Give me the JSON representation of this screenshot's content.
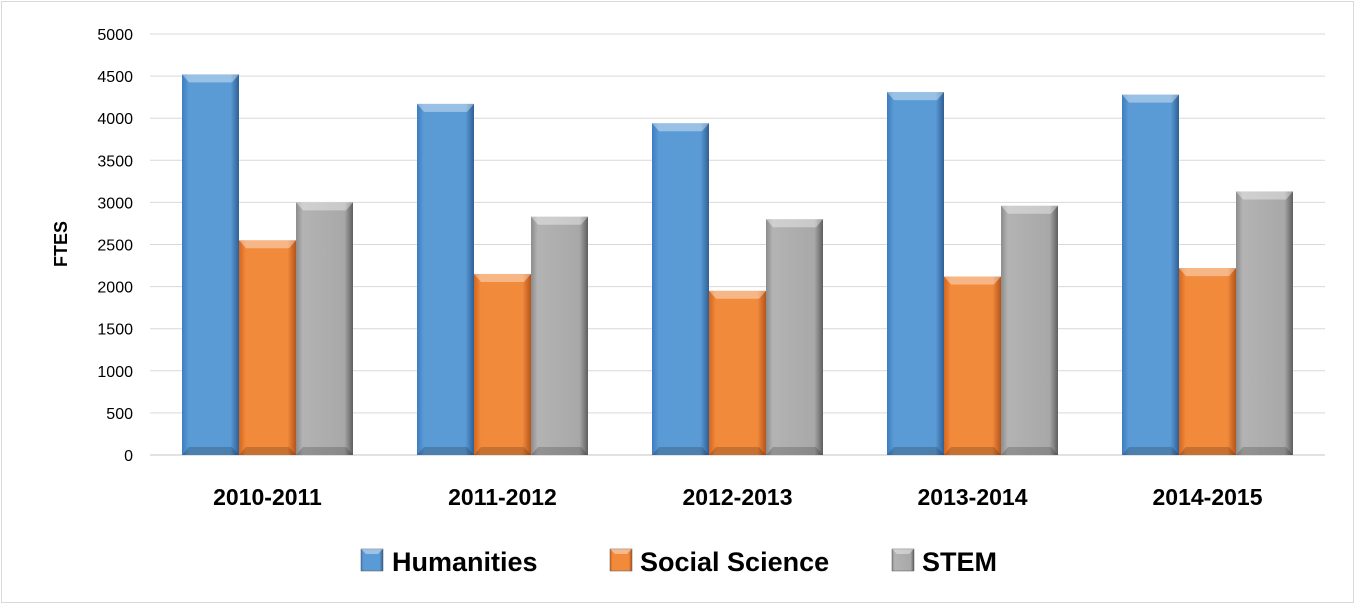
{
  "chart_data": {
    "type": "bar",
    "title": "",
    "xlabel": "",
    "ylabel": "FTES",
    "ylim": [
      0,
      5000
    ],
    "yticks": [
      0,
      500,
      1000,
      1500,
      2000,
      2500,
      3000,
      3500,
      4000,
      4500,
      5000
    ],
    "grid": true,
    "legend_position": "bottom",
    "categories": [
      "2010-2011",
      "2011-2012",
      "2012-2013",
      "2013-2014",
      "2014-2015"
    ],
    "series": [
      {
        "name": "Humanities",
        "color": "#5b9bd5",
        "values": [
          4520,
          4170,
          3940,
          4310,
          4280
        ]
      },
      {
        "name": "Social Science",
        "color": "#ed7d31",
        "values": [
          2550,
          2150,
          1950,
          2120,
          2220
        ]
      },
      {
        "name": "STEM",
        "color": "#a5a5a5",
        "values": [
          3000,
          2830,
          2800,
          2960,
          3130
        ]
      }
    ]
  }
}
